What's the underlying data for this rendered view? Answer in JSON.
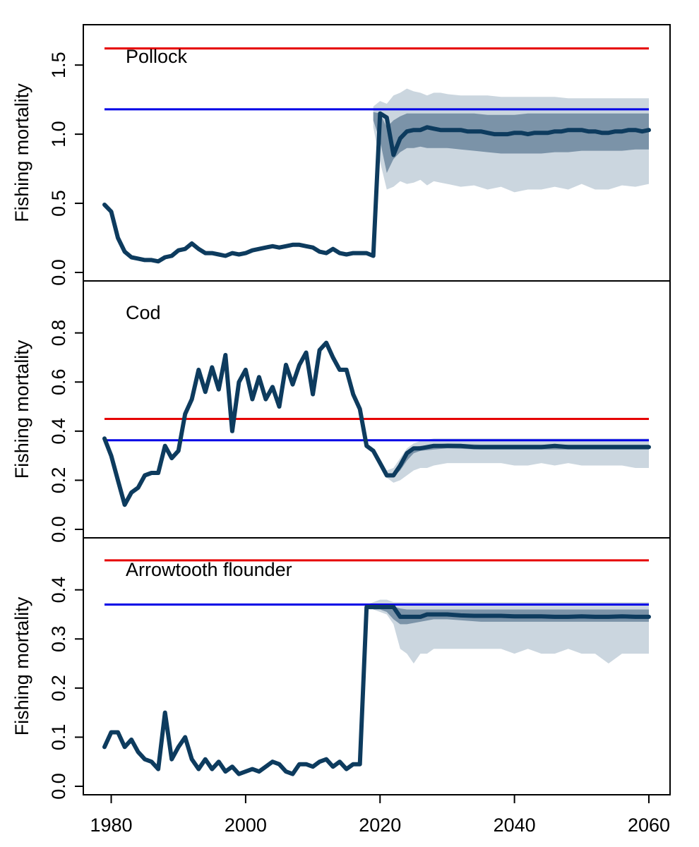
{
  "chart_data": [
    {
      "type": "line",
      "panel_label": "Pollock",
      "ylabel": "Fishing mortality",
      "xlabel": "",
      "xlim": [
        1979,
        2060
      ],
      "ylim": [
        0,
        1.7
      ],
      "y_ticks": [
        "0.0",
        "0.5",
        "1.0",
        "1.5"
      ],
      "x_ticks": [],
      "reference_lines": [
        {
          "value": 1.62,
          "color": "#e60000"
        },
        {
          "value": 1.18,
          "color": "#0000e6"
        }
      ],
      "series": [
        {
          "x": [
            1979,
            1980,
            1981,
            1982,
            1983,
            1984,
            1985,
            1986,
            1987,
            1988,
            1989,
            1990,
            1991,
            1992,
            1993,
            1994,
            1995,
            1996,
            1997,
            1998,
            1999,
            2000,
            2001,
            2002,
            2003,
            2004,
            2005,
            2006,
            2007,
            2008,
            2009,
            2010,
            2011,
            2012,
            2013,
            2014,
            2015,
            2016,
            2017,
            2018,
            2019,
            2020,
            2021,
            2022,
            2023,
            2024,
            2025,
            2026,
            2027,
            2028,
            2029,
            2030,
            2031,
            2032,
            2033,
            2034,
            2035,
            2036,
            2037,
            2038,
            2039,
            2040,
            2041,
            2042,
            2043,
            2044,
            2045,
            2046,
            2047,
            2048,
            2049,
            2050,
            2051,
            2052,
            2053,
            2054,
            2055,
            2056,
            2057,
            2058,
            2059,
            2060
          ],
          "y": [
            0.49,
            0.44,
            0.25,
            0.15,
            0.11,
            0.1,
            0.09,
            0.09,
            0.08,
            0.11,
            0.12,
            0.16,
            0.17,
            0.21,
            0.17,
            0.14,
            0.14,
            0.13,
            0.12,
            0.14,
            0.13,
            0.14,
            0.16,
            0.17,
            0.18,
            0.19,
            0.18,
            0.19,
            0.2,
            0.2,
            0.19,
            0.18,
            0.15,
            0.14,
            0.17,
            0.14,
            0.13,
            0.14,
            0.14,
            0.14,
            0.12,
            1.15,
            1.12,
            0.85,
            0.97,
            1.02,
            1.03,
            1.03,
            1.05,
            1.04,
            1.03,
            1.03,
            1.03,
            1.03,
            1.02,
            1.02,
            1.02,
            1.01,
            1.0,
            1.0,
            1.0,
            1.01,
            1.01,
            1.0,
            1.01,
            1.01,
            1.01,
            1.02,
            1.02,
            1.03,
            1.03,
            1.03,
            1.02,
            1.02,
            1.01,
            1.01,
            1.02,
            1.02,
            1.03,
            1.03,
            1.02,
            1.03
          ],
          "color": "#0d3b5e"
        }
      ],
      "bands": [
        {
          "kind": "outer",
          "color": "#cbd6df",
          "x": [
            2019,
            2020,
            2021,
            2022,
            2023,
            2024,
            2025,
            2026,
            2027,
            2028,
            2029,
            2030,
            2032,
            2034,
            2036,
            2038,
            2040,
            2042,
            2044,
            2046,
            2048,
            2050,
            2052,
            2054,
            2056,
            2058,
            2060
          ],
          "low": [
            1.05,
            0.8,
            0.6,
            0.62,
            0.66,
            0.64,
            0.65,
            0.67,
            0.63,
            0.66,
            0.65,
            0.64,
            0.62,
            0.63,
            0.6,
            0.62,
            0.58,
            0.6,
            0.6,
            0.62,
            0.6,
            0.64,
            0.6,
            0.6,
            0.63,
            0.62,
            0.64
          ],
          "high": [
            1.2,
            1.24,
            1.22,
            1.28,
            1.3,
            1.33,
            1.31,
            1.3,
            1.28,
            1.3,
            1.3,
            1.29,
            1.28,
            1.28,
            1.28,
            1.27,
            1.27,
            1.27,
            1.27,
            1.27,
            1.26,
            1.26,
            1.26,
            1.26,
            1.26,
            1.26,
            1.26
          ]
        },
        {
          "kind": "inner",
          "color": "#7b93a8",
          "x": [
            2019,
            2020,
            2021,
            2022,
            2023,
            2024,
            2025,
            2026,
            2027,
            2028,
            2030,
            2032,
            2034,
            2036,
            2038,
            2040,
            2042,
            2044,
            2046,
            2048,
            2050,
            2052,
            2054,
            2056,
            2058,
            2060
          ],
          "low": [
            1.1,
            0.95,
            0.72,
            0.82,
            0.87,
            0.9,
            0.9,
            0.91,
            0.9,
            0.9,
            0.9,
            0.89,
            0.88,
            0.87,
            0.86,
            0.86,
            0.86,
            0.86,
            0.87,
            0.87,
            0.88,
            0.88,
            0.88,
            0.88,
            0.89,
            0.89
          ],
          "high": [
            1.16,
            1.15,
            1.05,
            1.1,
            1.13,
            1.15,
            1.15,
            1.15,
            1.15,
            1.15,
            1.15,
            1.15,
            1.15,
            1.14,
            1.14,
            1.14,
            1.15,
            1.15,
            1.15,
            1.15,
            1.15,
            1.15,
            1.15,
            1.15,
            1.15,
            1.15
          ]
        }
      ]
    },
    {
      "type": "line",
      "panel_label": "Cod",
      "ylabel": "Fishing mortality",
      "xlabel": "",
      "xlim": [
        1979,
        2060
      ],
      "ylim": [
        0,
        0.96
      ],
      "y_ticks": [
        "0.0",
        "0.2",
        "0.4",
        "0.6",
        "0.8"
      ],
      "x_ticks": [],
      "reference_lines": [
        {
          "value": 0.45,
          "color": "#e60000"
        },
        {
          "value": 0.363,
          "color": "#0000e6"
        }
      ],
      "series": [
        {
          "x": [
            1979,
            1980,
            1981,
            1982,
            1983,
            1984,
            1985,
            1986,
            1987,
            1988,
            1989,
            1990,
            1991,
            1992,
            1993,
            1994,
            1995,
            1996,
            1997,
            1998,
            1999,
            2000,
            2001,
            2002,
            2003,
            2004,
            2005,
            2006,
            2007,
            2008,
            2009,
            2010,
            2011,
            2012,
            2013,
            2014,
            2015,
            2016,
            2017,
            2018,
            2019,
            2020,
            2021,
            2022,
            2023,
            2024,
            2025,
            2026,
            2027,
            2028,
            2029,
            2030,
            2032,
            2034,
            2036,
            2038,
            2040,
            2042,
            2044,
            2046,
            2048,
            2050,
            2052,
            2054,
            2056,
            2058,
            2060
          ],
          "y": [
            0.37,
            0.3,
            0.2,
            0.1,
            0.15,
            0.17,
            0.22,
            0.23,
            0.23,
            0.34,
            0.29,
            0.32,
            0.47,
            0.53,
            0.65,
            0.56,
            0.66,
            0.57,
            0.71,
            0.4,
            0.6,
            0.65,
            0.53,
            0.62,
            0.53,
            0.58,
            0.5,
            0.67,
            0.59,
            0.67,
            0.72,
            0.55,
            0.73,
            0.76,
            0.7,
            0.65,
            0.65,
            0.55,
            0.49,
            0.34,
            0.32,
            0.27,
            0.22,
            0.22,
            0.26,
            0.31,
            0.33,
            0.33,
            0.335,
            0.34,
            0.34,
            0.34,
            0.34,
            0.335,
            0.335,
            0.335,
            0.335,
            0.335,
            0.335,
            0.34,
            0.335,
            0.335,
            0.335,
            0.335,
            0.335,
            0.335,
            0.335
          ],
          "color": "#0d3b5e"
        }
      ],
      "bands": [
        {
          "kind": "outer",
          "color": "#cbd6df",
          "x": [
            2020,
            2021,
            2022,
            2023,
            2024,
            2025,
            2026,
            2027,
            2028,
            2030,
            2032,
            2034,
            2036,
            2038,
            2040,
            2042,
            2044,
            2046,
            2048,
            2050,
            2052,
            2054,
            2056,
            2058,
            2060
          ],
          "low": [
            0.26,
            0.21,
            0.19,
            0.2,
            0.22,
            0.24,
            0.25,
            0.25,
            0.26,
            0.27,
            0.27,
            0.27,
            0.27,
            0.27,
            0.26,
            0.26,
            0.27,
            0.26,
            0.27,
            0.26,
            0.26,
            0.26,
            0.26,
            0.25,
            0.25
          ],
          "high": [
            0.27,
            0.24,
            0.25,
            0.29,
            0.33,
            0.35,
            0.36,
            0.365,
            0.37,
            0.37,
            0.37,
            0.37,
            0.37,
            0.37,
            0.37,
            0.37,
            0.37,
            0.37,
            0.37,
            0.37,
            0.37,
            0.37,
            0.37,
            0.37,
            0.37
          ]
        },
        {
          "kind": "inner",
          "color": "#7b93a8",
          "x": [
            2021,
            2022,
            2023,
            2024,
            2025,
            2026,
            2028,
            2030,
            2035,
            2040,
            2045,
            2050,
            2055,
            2060
          ],
          "low": [
            0.22,
            0.215,
            0.24,
            0.28,
            0.31,
            0.32,
            0.325,
            0.33,
            0.325,
            0.325,
            0.325,
            0.325,
            0.325,
            0.325
          ],
          "high": [
            0.225,
            0.225,
            0.27,
            0.32,
            0.335,
            0.34,
            0.345,
            0.35,
            0.345,
            0.345,
            0.345,
            0.345,
            0.345,
            0.345
          ]
        }
      ]
    },
    {
      "type": "line",
      "panel_label": "Arrowtooth flounder",
      "ylabel": "Fishing mortality",
      "xlabel": "",
      "xlim": [
        1979,
        2060
      ],
      "ylim": [
        0,
        0.48
      ],
      "y_ticks": [
        "0.0",
        "0.1",
        "0.2",
        "0.3",
        "0.4"
      ],
      "x_ticks": [
        "1980",
        "2000",
        "2020",
        "2040",
        "2060"
      ],
      "reference_lines": [
        {
          "value": 0.46,
          "color": "#e60000"
        },
        {
          "value": 0.37,
          "color": "#0000e6"
        }
      ],
      "series": [
        {
          "x": [
            1979,
            1980,
            1981,
            1982,
            1983,
            1984,
            1985,
            1986,
            1987,
            1988,
            1989,
            1990,
            1991,
            1992,
            1993,
            1994,
            1995,
            1996,
            1997,
            1998,
            1999,
            2000,
            2001,
            2002,
            2003,
            2004,
            2005,
            2006,
            2007,
            2008,
            2009,
            2010,
            2011,
            2012,
            2013,
            2014,
            2015,
            2016,
            2017,
            2018,
            2019,
            2020,
            2021,
            2022,
            2023,
            2024,
            2025,
            2026,
            2027,
            2028,
            2029,
            2030,
            2032,
            2034,
            2036,
            2038,
            2040,
            2042,
            2044,
            2046,
            2048,
            2050,
            2052,
            2054,
            2056,
            2058,
            2060
          ],
          "y": [
            0.08,
            0.11,
            0.11,
            0.08,
            0.095,
            0.07,
            0.055,
            0.05,
            0.035,
            0.15,
            0.055,
            0.08,
            0.1,
            0.055,
            0.035,
            0.055,
            0.035,
            0.05,
            0.03,
            0.04,
            0.025,
            0.03,
            0.035,
            0.03,
            0.04,
            0.05,
            0.045,
            0.03,
            0.025,
            0.045,
            0.045,
            0.04,
            0.05,
            0.055,
            0.04,
            0.05,
            0.035,
            0.045,
            0.045,
            0.365,
            0.365,
            0.365,
            0.365,
            0.365,
            0.345,
            0.345,
            0.345,
            0.345,
            0.35,
            0.35,
            0.35,
            0.35,
            0.348,
            0.347,
            0.347,
            0.347,
            0.346,
            0.346,
            0.346,
            0.345,
            0.345,
            0.346,
            0.345,
            0.345,
            0.346,
            0.345,
            0.345
          ],
          "color": "#0d3b5e"
        }
      ],
      "bands": [
        {
          "kind": "outer",
          "color": "#cbd6df",
          "x": [
            2018,
            2019,
            2020,
            2021,
            2022,
            2023,
            2024,
            2025,
            2026,
            2027,
            2028,
            2030,
            2032,
            2034,
            2036,
            2038,
            2040,
            2042,
            2044,
            2046,
            2048,
            2050,
            2052,
            2054,
            2056,
            2058,
            2060
          ],
          "low": [
            0.36,
            0.36,
            0.355,
            0.35,
            0.33,
            0.28,
            0.27,
            0.25,
            0.27,
            0.27,
            0.28,
            0.28,
            0.28,
            0.28,
            0.28,
            0.28,
            0.27,
            0.28,
            0.27,
            0.27,
            0.28,
            0.27,
            0.27,
            0.25,
            0.27,
            0.27,
            0.27
          ],
          "high": [
            0.37,
            0.375,
            0.38,
            0.38,
            0.375,
            0.375,
            0.375,
            0.375,
            0.375,
            0.375,
            0.375,
            0.375,
            0.375,
            0.375,
            0.375,
            0.375,
            0.375,
            0.375,
            0.375,
            0.375,
            0.375,
            0.375,
            0.375,
            0.375,
            0.375,
            0.375,
            0.375
          ]
        },
        {
          "kind": "inner",
          "color": "#7b93a8",
          "x": [
            2019,
            2020,
            2021,
            2022,
            2023,
            2024,
            2026,
            2028,
            2030,
            2035,
            2040,
            2045,
            2050,
            2055,
            2060
          ],
          "low": [
            0.36,
            0.36,
            0.355,
            0.34,
            0.33,
            0.33,
            0.335,
            0.34,
            0.34,
            0.335,
            0.335,
            0.335,
            0.335,
            0.335,
            0.335
          ],
          "high": [
            0.368,
            0.368,
            0.368,
            0.366,
            0.362,
            0.36,
            0.36,
            0.36,
            0.36,
            0.36,
            0.36,
            0.36,
            0.36,
            0.36,
            0.36
          ]
        }
      ]
    }
  ]
}
